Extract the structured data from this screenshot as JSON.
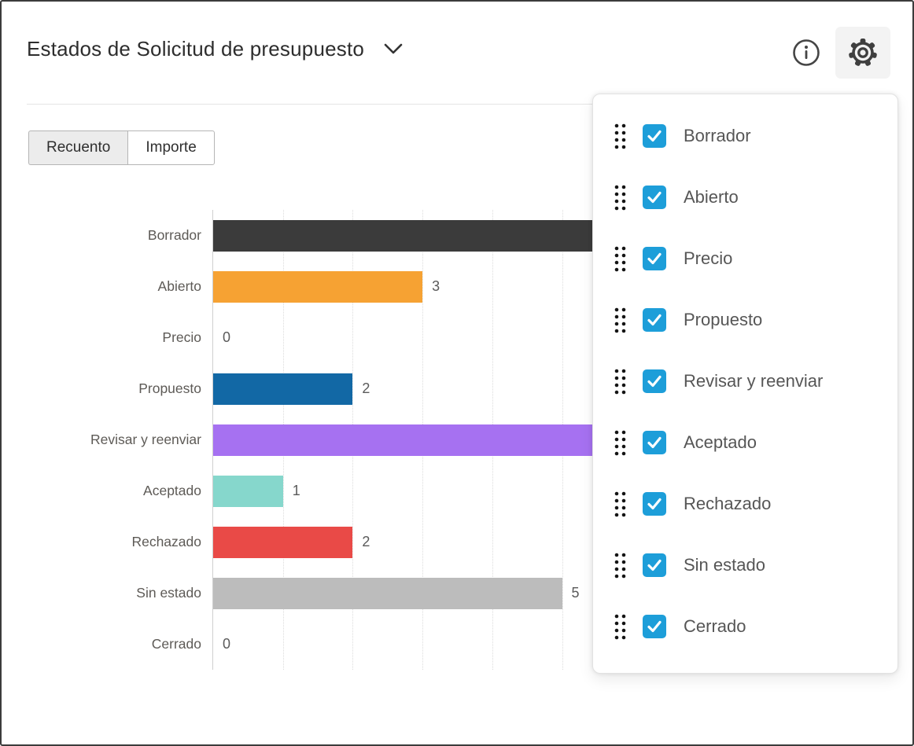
{
  "header": {
    "title": "Estados de Solicitud de presupuesto",
    "icons": [
      {
        "name": "info-icon"
      },
      {
        "name": "gear-icon",
        "state": "active"
      }
    ]
  },
  "tabs": {
    "items": [
      {
        "label": "Recuento",
        "selected": true
      },
      {
        "label": "Importe",
        "selected": false
      }
    ]
  },
  "chart_data": {
    "type": "bar",
    "orientation": "horizontal",
    "title": "Estados de Solicitud de presupuesto",
    "categories": [
      "Borrador",
      "Abierto",
      "Precio",
      "Propuesto",
      "Revisar y reenviar",
      "Aceptado",
      "Rechazado",
      "Sin estado",
      "Cerrado"
    ],
    "values": [
      6,
      3,
      0,
      2,
      6,
      1,
      2,
      5,
      0
    ],
    "bar_colors": [
      "#3b3b3b",
      "#f6a233",
      null,
      "#1268a5",
      "#a671f1",
      "#86d7cc",
      "#e94a47",
      "#bcbcbc",
      null
    ],
    "value_labels": [
      "",
      "3",
      "0",
      "2",
      "",
      "1",
      "2",
      "5",
      "0"
    ],
    "x_gridlines": [
      1,
      2,
      3,
      4,
      5,
      6,
      7,
      8
    ],
    "xlim": [
      0,
      9
    ],
    "legend": "none",
    "grid": "vertical dotted",
    "note": "Bars for 'Borrador' and 'Revisar y reenviar' extend under the open settings panel; their value labels are hidden (values estimated)."
  },
  "settings_panel": {
    "checkbox_color": "#1d9ed9",
    "items": [
      {
        "label": "Borrador",
        "checked": true
      },
      {
        "label": "Abierto",
        "checked": true
      },
      {
        "label": "Precio",
        "checked": true
      },
      {
        "label": "Propuesto",
        "checked": true
      },
      {
        "label": "Revisar y reenviar",
        "checked": true
      },
      {
        "label": "Aceptado",
        "checked": true
      },
      {
        "label": "Rechazado",
        "checked": true
      },
      {
        "label": "Sin estado",
        "checked": true
      },
      {
        "label": "Cerrado",
        "checked": true
      }
    ]
  }
}
